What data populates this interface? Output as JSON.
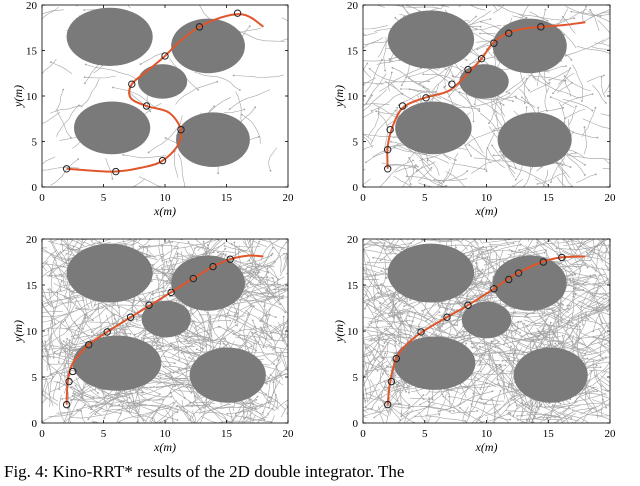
{
  "caption": "Fig. 4: Kino-RRT* results of the 2D double integrator. The",
  "colors": {
    "obstacle": "#7a7a7a",
    "tree": "#9a9a9a",
    "path": "#e0552a",
    "waypoint": "#222222"
  },
  "chart_data": [
    {
      "type": "scatter",
      "panel": "top-left",
      "xlabel": "x(m)",
      "ylabel": "y(m)",
      "xlim": [
        0,
        20
      ],
      "ylim": [
        0,
        20
      ],
      "xticks": [
        "0",
        "5",
        "10",
        "15",
        "20"
      ],
      "yticks": [
        "0",
        "5",
        "10",
        "15",
        "20"
      ],
      "tree_density": 70,
      "obstacles": [
        {
          "cx": 5.5,
          "cy": 16.5,
          "rx": 3.5,
          "ry": 3.2
        },
        {
          "cx": 13.5,
          "cy": 15.5,
          "rx": 3.0,
          "ry": 3.0
        },
        {
          "cx": 9.8,
          "cy": 11.6,
          "rx": 2.0,
          "ry": 1.9
        },
        {
          "cx": 5.7,
          "cy": 6.5,
          "rx": 3.1,
          "ry": 2.9
        },
        {
          "cx": 13.9,
          "cy": 5.2,
          "rx": 3.0,
          "ry": 3.0
        }
      ],
      "path": [
        [
          2,
          2
        ],
        [
          4,
          1.8
        ],
        [
          6,
          1.7
        ],
        [
          8,
          2.1
        ],
        [
          9.7,
          2.8
        ],
        [
          11,
          4.5
        ],
        [
          11.3,
          6.3
        ],
        [
          10.3,
          8.2
        ],
        [
          8.5,
          8.9
        ],
        [
          7.2,
          9.8
        ],
        [
          7.3,
          11.3
        ],
        [
          8.6,
          12.8
        ],
        [
          10,
          14.4
        ],
        [
          11.2,
          16
        ],
        [
          12.8,
          17.6
        ],
        [
          14.5,
          18.6
        ],
        [
          16,
          19
        ],
        [
          17,
          18.6
        ],
        [
          18,
          17.6
        ]
      ],
      "waypoints": [
        [
          2,
          2
        ],
        [
          6,
          1.7
        ],
        [
          9.8,
          2.9
        ],
        [
          11.3,
          6.3
        ],
        [
          8.5,
          8.9
        ],
        [
          7.3,
          11.3
        ],
        [
          10,
          14.4
        ],
        [
          12.8,
          17.6
        ],
        [
          15.9,
          19.1
        ]
      ]
    },
    {
      "type": "scatter",
      "panel": "top-right",
      "xlabel": "x(m)",
      "ylabel": "y(m)",
      "xlim": [
        0,
        20
      ],
      "ylim": [
        0,
        20
      ],
      "xticks": [
        "0",
        "5",
        "10",
        "15",
        "20"
      ],
      "yticks": [
        "0",
        "5",
        "10",
        "15",
        "20"
      ],
      "tree_density": 320,
      "obstacles": [
        {
          "cx": 5.5,
          "cy": 16.2,
          "rx": 3.5,
          "ry": 3.2
        },
        {
          "cx": 13.5,
          "cy": 15.5,
          "rx": 3.0,
          "ry": 3.0
        },
        {
          "cx": 9.8,
          "cy": 11.6,
          "rx": 2.0,
          "ry": 1.9
        },
        {
          "cx": 5.7,
          "cy": 6.5,
          "rx": 3.1,
          "ry": 2.9
        },
        {
          "cx": 13.9,
          "cy": 5.2,
          "rx": 3.0,
          "ry": 3.0
        }
      ],
      "path": [
        [
          2,
          2
        ],
        [
          2,
          4.5
        ],
        [
          2.5,
          7
        ],
        [
          3.3,
          8.8
        ],
        [
          5,
          9.8
        ],
        [
          7,
          10.6
        ],
        [
          8.5,
          12.5
        ],
        [
          9.6,
          14.1
        ],
        [
          10.5,
          15.8
        ],
        [
          11.7,
          16.9
        ],
        [
          13,
          17.4
        ],
        [
          14.5,
          17.6
        ],
        [
          16.3,
          17.8
        ],
        [
          18,
          18.1
        ]
      ],
      "waypoints": [
        [
          2,
          2
        ],
        [
          2,
          4.1
        ],
        [
          2.2,
          6.3
        ],
        [
          3.2,
          8.9
        ],
        [
          5.1,
          9.8
        ],
        [
          7.2,
          11.3
        ],
        [
          8.5,
          12.9
        ],
        [
          9.6,
          14.1
        ],
        [
          10.6,
          15.8
        ],
        [
          11.8,
          16.9
        ],
        [
          14.4,
          17.6
        ]
      ]
    },
    {
      "type": "scatter",
      "panel": "bottom-left",
      "xlabel": "x(m)",
      "ylabel": "y(m)",
      "xlim": [
        0,
        20
      ],
      "ylim": [
        0,
        20
      ],
      "xticks": [
        "0",
        "5",
        "10",
        "15",
        "20"
      ],
      "yticks": [
        "0",
        "5",
        "10",
        "15",
        "20"
      ],
      "tree_density": 900,
      "obstacles": [
        {
          "cx": 5.5,
          "cy": 16.3,
          "rx": 3.5,
          "ry": 3.2
        },
        {
          "cx": 13.5,
          "cy": 15.2,
          "rx": 3.0,
          "ry": 3.0
        },
        {
          "cx": 10.1,
          "cy": 11.3,
          "rx": 2.0,
          "ry": 2.0
        },
        {
          "cx": 6.1,
          "cy": 6.5,
          "rx": 3.6,
          "ry": 3.0
        },
        {
          "cx": 15.1,
          "cy": 5.2,
          "rx": 3.1,
          "ry": 3.0
        }
      ],
      "path": [
        [
          2,
          2
        ],
        [
          2.1,
          4.5
        ],
        [
          2.5,
          6.5
        ],
        [
          3.8,
          8.5
        ],
        [
          5.3,
          9.9
        ],
        [
          7.2,
          11.5
        ],
        [
          8.8,
          12.8
        ],
        [
          10.6,
          14.3
        ],
        [
          12.3,
          15.7
        ],
        [
          13.9,
          17
        ],
        [
          15.3,
          17.8
        ],
        [
          16.8,
          18.2
        ],
        [
          18,
          18.1
        ]
      ],
      "waypoints": [
        [
          2,
          2
        ],
        [
          2.2,
          4.5
        ],
        [
          2.5,
          5.6
        ],
        [
          3.8,
          8.5
        ],
        [
          5.3,
          9.9
        ],
        [
          7.2,
          11.5
        ],
        [
          8.7,
          12.8
        ],
        [
          10.5,
          14.2
        ],
        [
          12.3,
          15.7
        ],
        [
          13.9,
          17
        ],
        [
          15.3,
          17.8
        ]
      ]
    },
    {
      "type": "scatter",
      "panel": "bottom-right",
      "xlabel": "x(m)",
      "ylabel": "y(m)",
      "xlim": [
        0,
        20
      ],
      "ylim": [
        0,
        20
      ],
      "xticks": [
        "0",
        "5",
        "10",
        "15",
        "20"
      ],
      "yticks": [
        "0",
        "5",
        "10",
        "15",
        "20"
      ],
      "tree_density": 1000,
      "obstacles": [
        {
          "cx": 5.5,
          "cy": 16.3,
          "rx": 3.5,
          "ry": 3.2
        },
        {
          "cx": 13.5,
          "cy": 15.2,
          "rx": 3.0,
          "ry": 3.0
        },
        {
          "cx": 10,
          "cy": 11.2,
          "rx": 2.0,
          "ry": 2.0
        },
        {
          "cx": 5.8,
          "cy": 6.5,
          "rx": 3.3,
          "ry": 2.9
        },
        {
          "cx": 15.2,
          "cy": 5.2,
          "rx": 3.0,
          "ry": 3.0
        }
      ],
      "path": [
        [
          2,
          2
        ],
        [
          2.2,
          4.5
        ],
        [
          2.7,
          7
        ],
        [
          3.5,
          8.5
        ],
        [
          4.8,
          9.9
        ],
        [
          6.8,
          11.5
        ],
        [
          8.5,
          12.8
        ],
        [
          10.5,
          14.5
        ],
        [
          12.4,
          16.2
        ],
        [
          14.5,
          17.5
        ],
        [
          16.1,
          18
        ],
        [
          18,
          18.1
        ]
      ],
      "waypoints": [
        [
          2,
          2
        ],
        [
          2.3,
          4.5
        ],
        [
          2.7,
          7
        ],
        [
          4.7,
          9.9
        ],
        [
          6.8,
          11.5
        ],
        [
          8.5,
          12.8
        ],
        [
          10.6,
          14.6
        ],
        [
          11.8,
          15.6
        ],
        [
          12.6,
          16.3
        ],
        [
          14.6,
          17.5
        ],
        [
          16.1,
          18
        ]
      ]
    }
  ]
}
